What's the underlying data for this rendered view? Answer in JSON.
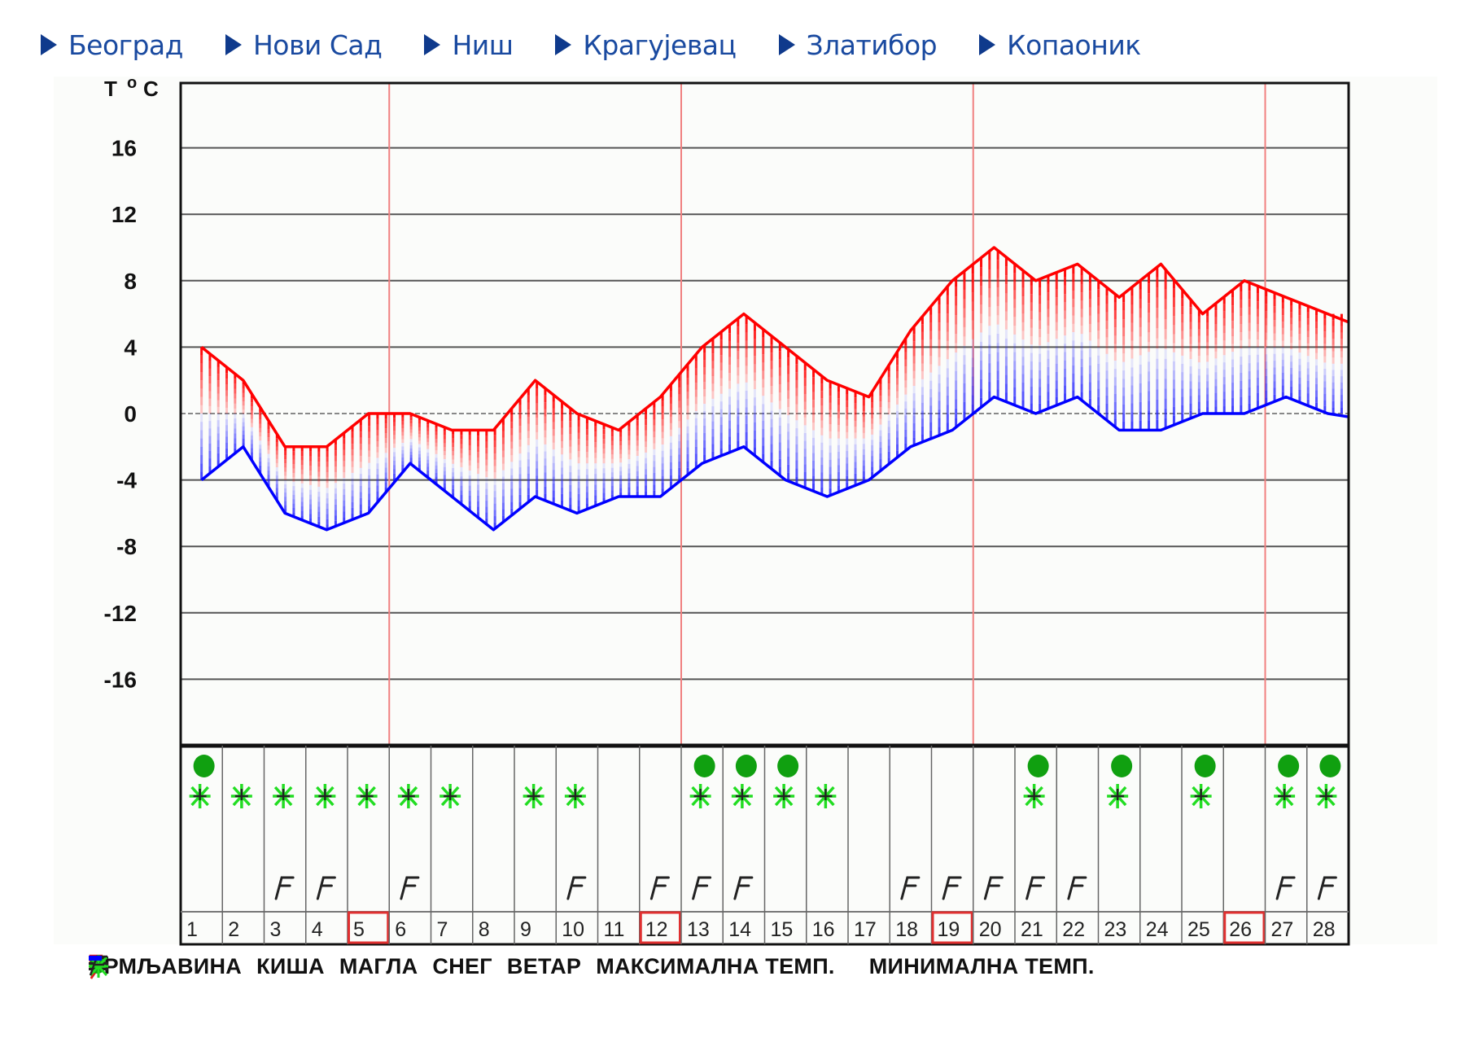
{
  "nav": {
    "items": [
      {
        "label": "Београд"
      },
      {
        "label": "Нови Сад"
      },
      {
        "label": "Ниш"
      },
      {
        "label": "Крагујевац"
      },
      {
        "label": "Златибор"
      },
      {
        "label": "Копаоник"
      }
    ]
  },
  "colors": {
    "nav_text": "#1a4aa0",
    "nav_arrow": "#0f3a8c",
    "max_line": "#ff0000",
    "min_line": "#0000ff",
    "week_marker": "#f08080",
    "rain": "#10a010",
    "snow": "#22dd22",
    "grid": "#555555"
  },
  "legend": {
    "items": [
      {
        "icon": "thunderstorm-icon",
        "label": "ГРМЉАВИНА"
      },
      {
        "icon": "rain-icon",
        "label": "КИША"
      },
      {
        "icon": "fog-icon",
        "label": "МАГЛА"
      },
      {
        "icon": "snow-icon",
        "label": "СНЕГ"
      },
      {
        "icon": "wind-icon",
        "label": "ВЕТАР"
      },
      {
        "icon": "max-temp-icon",
        "label": "МАКСИМАЛНА ТЕМП."
      },
      {
        "icon": "min-temp-icon",
        "label": "МИНИМАЛНА ТЕМП."
      }
    ]
  },
  "chart_data": {
    "type": "line",
    "title": "",
    "ylabel": "T °C",
    "xlabel": "",
    "ylim": [
      -20,
      20
    ],
    "yticks": [
      16,
      12,
      8,
      4,
      0,
      -4,
      -8,
      -12,
      -16
    ],
    "grid": true,
    "legend_position": "bottom",
    "categories": [
      "1",
      "2",
      "3",
      "4",
      "5",
      "6",
      "7",
      "8",
      "9",
      "10",
      "11",
      "12",
      "13",
      "14",
      "15",
      "16",
      "17",
      "18",
      "19",
      "20",
      "21",
      "22",
      "23",
      "24",
      "25",
      "26",
      "27",
      "28"
    ],
    "highlighted_days": [
      "5",
      "12",
      "19",
      "26"
    ],
    "series": [
      {
        "name": "МАКСИМАЛНА ТЕМП.",
        "color": "#ff0000",
        "values": [
          4,
          2,
          -2,
          -2,
          0,
          0,
          -1,
          -1,
          2,
          0,
          -1,
          1,
          4,
          6,
          4,
          2,
          1,
          5,
          8,
          10,
          8,
          9,
          7,
          9,
          6,
          8,
          7,
          6
        ]
      },
      {
        "name": "МИНИМАЛНА ТЕМП.",
        "color": "#0000ff",
        "values": [
          -4,
          -2,
          -6,
          -7,
          -6,
          -3,
          -5,
          -7,
          -5,
          -6,
          -5,
          -5,
          -3,
          -2,
          -4,
          -5,
          -4,
          -2,
          -1,
          1,
          0,
          1,
          -1,
          -1,
          0,
          0,
          1,
          0
        ]
      }
    ],
    "weather": {
      "rain": [
        "1",
        "13",
        "14",
        "15",
        "21",
        "23",
        "25",
        "27",
        "28"
      ],
      "snow": [
        "1",
        "2",
        "3",
        "4",
        "5",
        "6",
        "7",
        "9",
        "10",
        "13",
        "14",
        "15",
        "16",
        "21",
        "23",
        "25",
        "27",
        "28"
      ],
      "wind": [
        "3",
        "4",
        "6",
        "10",
        "12",
        "13",
        "14",
        "18",
        "19",
        "20",
        "21",
        "22",
        "27",
        "28"
      ],
      "thunderstorm": [],
      "fog": []
    }
  }
}
